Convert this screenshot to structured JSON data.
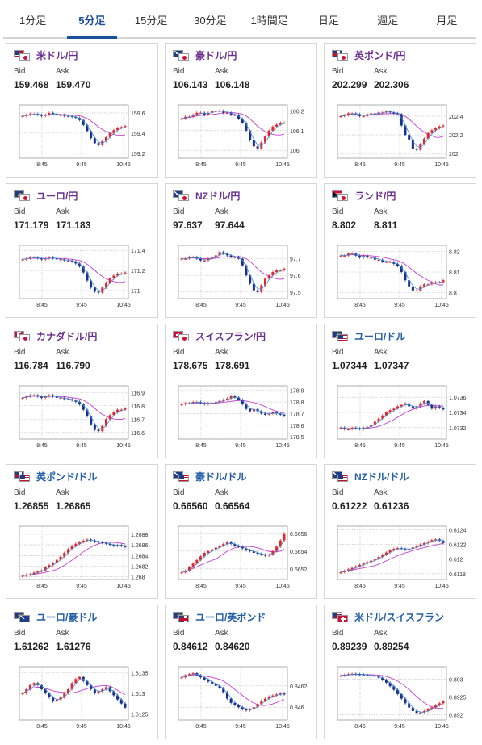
{
  "tabs": [
    {
      "label": "1分足",
      "active": false
    },
    {
      "label": "5分足",
      "active": true
    },
    {
      "label": "15分足",
      "active": false
    },
    {
      "label": "30分足",
      "active": false
    },
    {
      "label": "1時間足",
      "active": false
    },
    {
      "label": "日足",
      "active": false
    },
    {
      "label": "週足",
      "active": false
    },
    {
      "label": "月足",
      "active": false
    }
  ],
  "labels": {
    "bid": "Bid",
    "ask": "Ask"
  },
  "colors": {
    "up": "#e8262a",
    "down": "#1a2f8c",
    "ma_short": "#3b8fd9",
    "ma_long": "#c43fd2",
    "title_jpy": "#6a2f8e",
    "title_cross": "#245ea8",
    "tab_active": "#1a4f9a"
  },
  "cards": [
    {
      "pair": "米ドル/円",
      "flags": [
        "us",
        "jp"
      ],
      "bid": "159.468",
      "ask": "159.470",
      "chart_data": {
        "type": "candlestick",
        "x_ticks": [
          "8:45",
          "9:45",
          "10:45"
        ],
        "y_ticks": [
          "159.6",
          "159.4",
          "159.2"
        ],
        "ylim": [
          159.15,
          159.68
        ],
        "series": [
          159.57,
          159.58,
          159.59,
          159.59,
          159.58,
          159.57,
          159.58,
          159.6,
          159.59,
          159.58,
          159.58,
          159.57,
          159.57,
          159.56,
          159.55,
          159.53,
          159.48,
          159.42,
          159.35,
          159.3,
          159.28,
          159.32,
          159.36,
          159.4,
          159.43,
          159.45,
          159.46,
          159.47
        ]
      }
    },
    {
      "pair": "豪ドル/円",
      "flags": [
        "au",
        "jp"
      ],
      "bid": "106.143",
      "ask": "106.148",
      "chart_data": {
        "type": "candlestick",
        "x_ticks": [
          "8:45",
          "9:45",
          "10:45"
        ],
        "y_ticks": [
          "106.2",
          "106.1",
          "106"
        ],
        "ylim": [
          105.96,
          106.23
        ],
        "series": [
          106.16,
          106.17,
          106.17,
          106.18,
          106.19,
          106.19,
          106.18,
          106.19,
          106.2,
          106.2,
          106.2,
          106.19,
          106.19,
          106.18,
          106.18,
          106.16,
          106.14,
          106.1,
          106.05,
          106.02,
          106.01,
          106.04,
          106.07,
          106.1,
          106.12,
          106.13,
          106.14,
          106.14
        ]
      }
    },
    {
      "pair": "英ポンド/円",
      "flags": [
        "gb",
        "jp"
      ],
      "bid": "202.299",
      "ask": "202.306",
      "chart_data": {
        "type": "candlestick",
        "x_ticks": [
          "8:45",
          "9:45",
          "10:45"
        ],
        "y_ticks": [
          "202.4",
          "202.2",
          "202"
        ],
        "ylim": [
          201.95,
          202.52
        ],
        "series": [
          202.4,
          202.41,
          202.43,
          202.43,
          202.42,
          202.4,
          202.4,
          202.42,
          202.43,
          202.42,
          202.44,
          202.44,
          202.45,
          202.44,
          202.43,
          202.42,
          202.3,
          202.2,
          202.15,
          202.05,
          202.04,
          202.1,
          202.16,
          202.22,
          202.25,
          202.27,
          202.29,
          202.3
        ]
      }
    },
    {
      "pair": "ユーロ/円",
      "flags": [
        "eu",
        "jp"
      ],
      "bid": "171.179",
      "ask": "171.183",
      "chart_data": {
        "type": "candlestick",
        "x_ticks": [
          "8:45",
          "9:45",
          "10:45"
        ],
        "y_ticks": [
          "171.4",
          "171.2",
          "171"
        ],
        "ylim": [
          170.92,
          171.45
        ],
        "series": [
          171.31,
          171.32,
          171.33,
          171.33,
          171.32,
          171.31,
          171.32,
          171.33,
          171.32,
          171.31,
          171.31,
          171.3,
          171.3,
          171.29,
          171.27,
          171.24,
          171.18,
          171.1,
          171.03,
          170.99,
          170.98,
          171.03,
          171.08,
          171.12,
          171.15,
          171.17,
          171.17,
          171.18
        ]
      }
    },
    {
      "pair": "NZドル/円",
      "flags": [
        "nz",
        "jp"
      ],
      "bid": "97.637",
      "ask": "97.644",
      "chart_data": {
        "type": "candlestick",
        "x_ticks": [
          "8:45",
          "9:45",
          "10:45"
        ],
        "y_ticks": [
          "97.7",
          "97.6",
          "97.5"
        ],
        "ylim": [
          97.46,
          97.78
        ],
        "series": [
          97.7,
          97.7,
          97.71,
          97.71,
          97.7,
          97.69,
          97.69,
          97.7,
          97.71,
          97.72,
          97.74,
          97.73,
          97.72,
          97.71,
          97.71,
          97.7,
          97.66,
          97.6,
          97.55,
          97.51,
          97.5,
          97.54,
          97.58,
          97.6,
          97.62,
          97.63,
          97.63,
          97.64
        ]
      }
    },
    {
      "pair": "ランド/円",
      "flags": [
        "za",
        "jp"
      ],
      "bid": "8.802",
      "ask": "8.811",
      "chart_data": {
        "type": "candlestick",
        "x_ticks": [
          "8:45",
          "9:45",
          "10:45"
        ],
        "y_ticks": [
          "8.82",
          "8.81",
          "8.8"
        ],
        "ylim": [
          8.797,
          8.823
        ],
        "series": [
          8.818,
          8.818,
          8.819,
          8.819,
          8.818,
          8.817,
          8.818,
          8.817,
          8.817,
          8.816,
          8.816,
          8.815,
          8.815,
          8.815,
          8.814,
          8.813,
          8.81,
          8.806,
          8.803,
          8.801,
          8.801,
          8.803,
          8.804,
          8.804,
          8.805,
          8.805,
          8.805,
          8.806
        ]
      }
    },
    {
      "pair": "カナダドル/円",
      "flags": [
        "ca",
        "jp"
      ],
      "bid": "116.784",
      "ask": "116.790",
      "chart_data": {
        "type": "candlestick",
        "x_ticks": [
          "8:45",
          "9:45",
          "10:45"
        ],
        "y_ticks": [
          "116.9",
          "116.8",
          "116.7",
          "116.6"
        ],
        "ylim": [
          116.55,
          116.95
        ],
        "series": [
          116.86,
          116.87,
          116.88,
          116.88,
          116.87,
          116.86,
          116.87,
          116.88,
          116.87,
          116.86,
          116.86,
          116.85,
          116.85,
          116.84,
          116.83,
          116.81,
          116.77,
          116.72,
          116.66,
          116.62,
          116.61,
          116.65,
          116.7,
          116.73,
          116.75,
          116.77,
          116.77,
          116.78
        ]
      }
    },
    {
      "pair": "スイスフラン/円",
      "flags": [
        "ch",
        "jp"
      ],
      "bid": "178.675",
      "ask": "178.691",
      "chart_data": {
        "type": "candlestick",
        "x_ticks": [
          "8:45",
          "9:45",
          "10:45"
        ],
        "y_ticks": [
          "178.9",
          "178.8",
          "178.7",
          "178.6",
          "178.5"
        ],
        "ylim": [
          178.48,
          178.94
        ],
        "series": [
          178.78,
          178.79,
          178.79,
          178.8,
          178.8,
          178.79,
          178.78,
          178.79,
          178.79,
          178.8,
          178.81,
          178.82,
          178.83,
          178.85,
          178.84,
          178.82,
          178.78,
          178.74,
          178.72,
          178.74,
          178.72,
          178.7,
          178.69,
          178.7,
          178.71,
          178.7,
          178.69,
          178.68
        ]
      }
    },
    {
      "pair": "ユーロ/ドル",
      "flags": [
        "eu",
        "us"
      ],
      "bid": "1.07344",
      "ask": "1.07347",
      "chart_data": {
        "type": "candlestick",
        "x_ticks": [
          "8:45",
          "9:45",
          "10:45"
        ],
        "y_ticks": [
          "1.0736",
          "1.0734",
          "1.0732"
        ],
        "ylim": [
          1.07305,
          1.07375
        ],
        "series": [
          1.0732,
          1.07318,
          1.07318,
          1.0732,
          1.07319,
          1.07318,
          1.0732,
          1.07321,
          1.07324,
          1.07328,
          1.07332,
          1.07336,
          1.0734,
          1.07343,
          1.07345,
          1.07348,
          1.0735,
          1.07352,
          1.07348,
          1.07345,
          1.07348,
          1.07352,
          1.07355,
          1.0735,
          1.07345,
          1.07348,
          1.07346,
          1.07344
        ]
      }
    },
    {
      "pair": "英ポンド/ドル",
      "flags": [
        "gb",
        "us"
      ],
      "bid": "1.26855",
      "ask": "1.26865",
      "chart_data": {
        "type": "candlestick",
        "x_ticks": [
          "8:45",
          "9:45",
          "10:45"
        ],
        "y_ticks": [
          "1.2688",
          "1.2686",
          "1.2684",
          "1.2682",
          "1.268"
        ],
        "ylim": [
          1.26795,
          1.26895
        ],
        "series": [
          1.26802,
          1.26804,
          1.26805,
          1.26808,
          1.2681,
          1.26812,
          1.26818,
          1.26822,
          1.26826,
          1.26832,
          1.26838,
          1.26845,
          1.26852,
          1.26858,
          1.26862,
          1.26865,
          1.26868,
          1.2687,
          1.26868,
          1.26866,
          1.26865,
          1.26864,
          1.26862,
          1.2686,
          1.26858,
          1.2686,
          1.26858,
          1.26856
        ]
      }
    },
    {
      "pair": "豪ドル/ドル",
      "flags": [
        "au",
        "us"
      ],
      "bid": "0.66560",
      "ask": "0.66564",
      "chart_data": {
        "type": "candlestick",
        "x_ticks": [
          "8:45",
          "9:45",
          "10:45"
        ],
        "y_ticks": [
          "0.6656",
          "0.6654",
          "0.6652"
        ],
        "ylim": [
          0.66508,
          0.66568
        ],
        "series": [
          0.66516,
          0.66518,
          0.66522,
          0.66526,
          0.6653,
          0.66534,
          0.66538,
          0.6654,
          0.66542,
          0.66544,
          0.66546,
          0.66548,
          0.6655,
          0.66548,
          0.66546,
          0.66545,
          0.66543,
          0.66541,
          0.6654,
          0.66538,
          0.66537,
          0.66536,
          0.66535,
          0.66536,
          0.6654,
          0.66545,
          0.66552,
          0.6656
        ]
      }
    },
    {
      "pair": "NZドル/ドル",
      "flags": [
        "nz",
        "us"
      ],
      "bid": "0.61222",
      "ask": "0.61236",
      "chart_data": {
        "type": "candlestick",
        "x_ticks": [
          "8:45",
          "9:45",
          "10:45"
        ],
        "y_ticks": [
          "0.6124",
          "0.6122",
          "0.612",
          "0.6118"
        ],
        "ylim": [
          0.61172,
          0.61245
        ],
        "series": [
          0.61182,
          0.61184,
          0.61186,
          0.61188,
          0.6119,
          0.61192,
          0.61194,
          0.61196,
          0.61198,
          0.612,
          0.61203,
          0.61206,
          0.61209,
          0.61212,
          0.61214,
          0.61215,
          0.61214,
          0.61213,
          0.61214,
          0.61216,
          0.61218,
          0.6122,
          0.61222,
          0.61224,
          0.61226,
          0.61227,
          0.61225,
          0.61222
        ]
      }
    },
    {
      "pair": "ユーロ/豪ドル",
      "flags": [
        "eu",
        "au"
      ],
      "bid": "1.61262",
      "ask": "1.61276",
      "chart_data": {
        "type": "candlestick",
        "x_ticks": [
          "8:45",
          "9:45",
          "10:45"
        ],
        "y_ticks": [
          "1.6135",
          "1.613",
          "1.6125"
        ],
        "ylim": [
          1.61235,
          1.61365
        ],
        "series": [
          1.613,
          1.6131,
          1.6132,
          1.61325,
          1.6132,
          1.6131,
          1.613,
          1.6129,
          1.6128,
          1.61285,
          1.6129,
          1.613,
          1.6131,
          1.61325,
          1.61335,
          1.6134,
          1.6133,
          1.6132,
          1.6131,
          1.613,
          1.61305,
          1.6131,
          1.61315,
          1.61305,
          1.61295,
          1.61285,
          1.61275,
          1.61265
        ]
      }
    },
    {
      "pair": "ユーロ/英ポンド",
      "flags": [
        "eu",
        "gb"
      ],
      "bid": "0.84612",
      "ask": "0.84620",
      "chart_data": {
        "type": "candlestick",
        "x_ticks": [
          "8:45",
          "9:45",
          "10:45"
        ],
        "y_ticks": [
          "0.8462",
          "0.846"
        ],
        "ylim": [
          0.84588,
          0.84638
        ],
        "series": [
          0.84628,
          0.8463,
          0.84631,
          0.84632,
          0.8463,
          0.84628,
          0.84626,
          0.84624,
          0.84622,
          0.8462,
          0.84618,
          0.84614,
          0.84608,
          0.84604,
          0.84602,
          0.846,
          0.84598,
          0.84597,
          0.84598,
          0.846,
          0.84603,
          0.84606,
          0.84608,
          0.8461,
          0.84611,
          0.84612,
          0.84613,
          0.84612
        ]
      }
    },
    {
      "pair": "米ドル/スイスフラン",
      "flags": [
        "us",
        "ch"
      ],
      "bid": "0.89239",
      "ask": "0.89254",
      "chart_data": {
        "type": "candlestick",
        "x_ticks": [
          "8:45",
          "9:45",
          "10:45"
        ],
        "y_ticks": [
          "0.893",
          "0.8925",
          "0.892"
        ],
        "ylim": [
          0.89185,
          0.89335
        ],
        "series": [
          0.8931,
          0.89312,
          0.89314,
          0.89315,
          0.89314,
          0.89313,
          0.89312,
          0.89311,
          0.8931,
          0.89308,
          0.89304,
          0.89298,
          0.8929,
          0.8928,
          0.8927,
          0.89258,
          0.89245,
          0.89232,
          0.8922,
          0.8921,
          0.89205,
          0.89206,
          0.8921,
          0.89215,
          0.8922,
          0.89226,
          0.89232,
          0.89238
        ]
      }
    }
  ]
}
